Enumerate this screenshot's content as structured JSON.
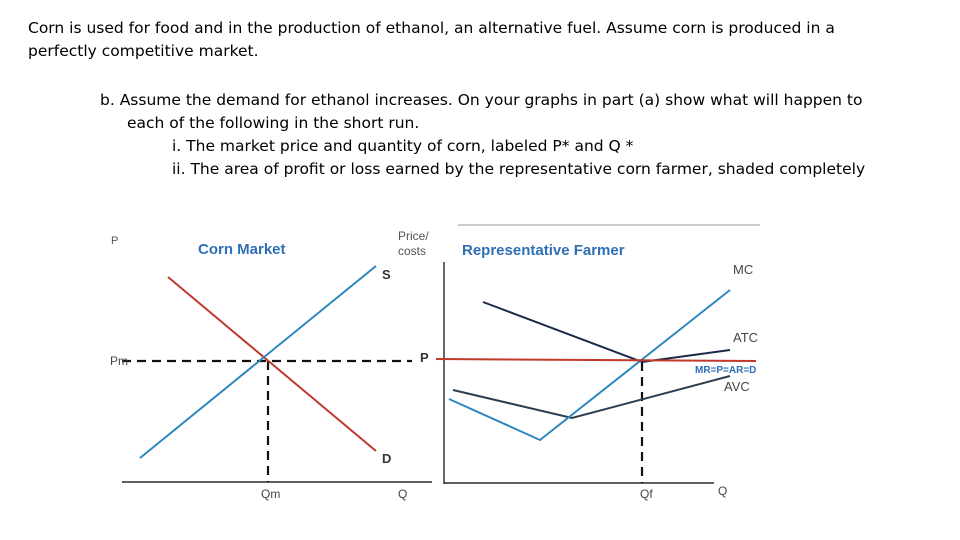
{
  "text": {
    "intro_line1": "Corn is used for food and in the production of ethanol, an alternative fuel.  Assume corn is produced in a",
    "intro_line2": "perfectly competitive market.",
    "b_line1": "b.  Assume the demand for ethanol increases.  On your graphs in part (a) show what will happen to",
    "b_line2": "each of the following in the short run.",
    "b_i": "i.  The market price and quantity of corn, labeled P* and Q *",
    "b_ii": "ii.  The area of profit or loss earned by the representative corn farmer, shaded completely"
  },
  "market": {
    "title": "Corn Market",
    "y_label_fragment": "P",
    "price_label": "Pm",
    "supply_label": "S",
    "demand_label": "D",
    "qty_label": "Qm",
    "x_axis_label": "Q"
  },
  "farmer": {
    "title": "Representative Farmer",
    "y_label_line1": "Price/",
    "y_label_line2": "costs",
    "price_label": "P",
    "mc_label": "MC",
    "atc_label": "ATC",
    "mr_label": "MR=P=AR=D",
    "avc_label": "AVC",
    "qty_label": "Qf",
    "x_axis_label": "Q"
  },
  "colors": {
    "supply": "#2e86c1",
    "demand": "#c0392b",
    "title": "#2e6fb5",
    "atc": "#1c2a4a",
    "avc": "#2c3e50",
    "mr": "#c0392b",
    "mc": "#2e86c1",
    "axis": "#000000",
    "label": "#444444"
  }
}
